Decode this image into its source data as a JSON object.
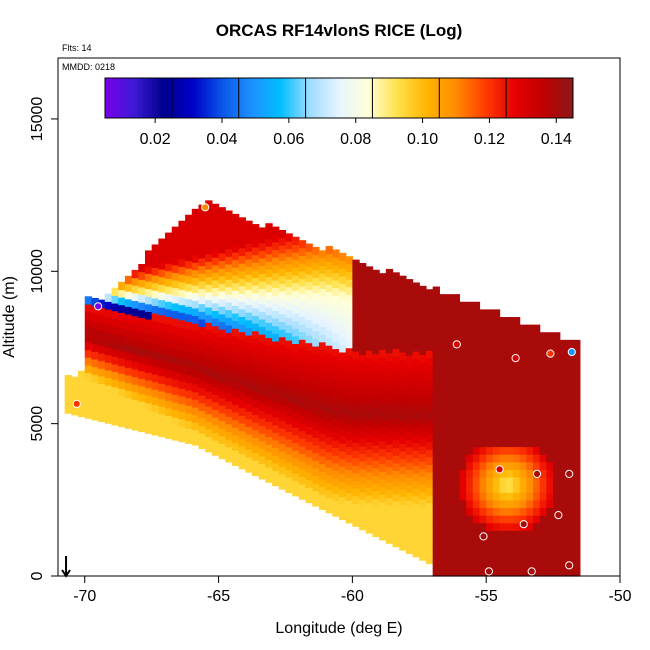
{
  "chart_data": {
    "type": "heatmap",
    "title": "ORCAS RF14vlonS RICE (Log)",
    "flights_label": "Flts: 14",
    "date_label": "MMDD: 0218",
    "xlabel": "Longitude (deg E)",
    "ylabel": "Altitude (m)",
    "xlim": [
      -71,
      -50
    ],
    "ylim": [
      0,
      17000
    ],
    "x_ticks": [
      -70,
      -65,
      -60,
      -55,
      -50
    ],
    "x_tick_labels": [
      "-70",
      "-65",
      "-60",
      "-55",
      "-50"
    ],
    "y_ticks": [
      0,
      5000,
      10000,
      15000
    ],
    "y_tick_labels": [
      "0",
      "5000",
      "10000",
      "15000"
    ],
    "colorbar": {
      "min": 0.005,
      "max": 0.145,
      "ticks": [
        0.02,
        0.04,
        0.06,
        0.08,
        0.1,
        0.12,
        0.14
      ],
      "tick_labels": [
        "0.02",
        "0.04",
        "0.06",
        "0.08",
        "0.10",
        "0.12",
        "0.14"
      ],
      "colors": [
        "#7a00e8",
        "#3c1ad6",
        "#00008c",
        "#0000c8",
        "#0a55e8",
        "#1e90ff",
        "#00bfff",
        "#9fdcff",
        "#e6f4ff",
        "#ffffd8",
        "#ffe14a",
        "#ffb400",
        "#ff8c00",
        "#ff3c00",
        "#e60000",
        "#c00000",
        "#8a1a1a"
      ]
    },
    "grid": false,
    "legend": "top",
    "sample_points": [
      {
        "lon": -65.5,
        "alt": 12100,
        "value": 0.11
      },
      {
        "lon": -69.5,
        "alt": 8850,
        "value": 0.005
      },
      {
        "lon": -70.3,
        "alt": 5650,
        "value": 0.12
      },
      {
        "lon": -56.1,
        "alt": 7600,
        "value": 0.13
      },
      {
        "lon": -53.9,
        "alt": 7150,
        "value": 0.13
      },
      {
        "lon": -52.6,
        "alt": 7300,
        "value": 0.12
      },
      {
        "lon": -51.8,
        "alt": 7350,
        "value": 0.05
      },
      {
        "lon": -54.5,
        "alt": 3500,
        "value": 0.13
      },
      {
        "lon": -53.1,
        "alt": 3350,
        "value": 0.14
      },
      {
        "lon": -51.9,
        "alt": 3350,
        "value": 0.14
      },
      {
        "lon": -53.6,
        "alt": 1700,
        "value": 0.14
      },
      {
        "lon": -52.3,
        "alt": 2000,
        "value": 0.14
      },
      {
        "lon": -55.1,
        "alt": 1300,
        "value": 0.14
      },
      {
        "lon": -51.9,
        "alt": 350,
        "value": 0.14
      },
      {
        "lon": -54.9,
        "alt": 150,
        "value": 0.14
      },
      {
        "lon": -53.3,
        "alt": 150,
        "value": 0.14
      }
    ],
    "markers": [
      {
        "type": "arrow-down",
        "lon": -70.7,
        "alt": 0
      }
    ]
  }
}
